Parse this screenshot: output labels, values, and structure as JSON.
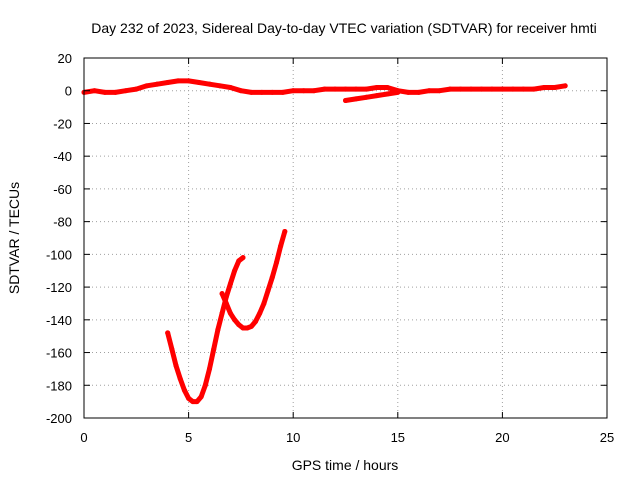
{
  "chart_data": {
    "type": "line",
    "title": "Day 232 of 2023, Sidereal Day-to-day VTEC variation (SDTVAR) for receiver hmti",
    "xlabel": "GPS time / hours",
    "ylabel": "SDTVAR / TECUs",
    "xlim": [
      0,
      25
    ],
    "ylim": [
      -200,
      20
    ],
    "xticks": [
      0,
      5,
      10,
      15,
      20,
      25
    ],
    "yticks": [
      20,
      0,
      -20,
      -40,
      -60,
      -80,
      -100,
      -120,
      -140,
      -160,
      -180,
      -200
    ],
    "grid": true,
    "legend": "none",
    "series_color": "#ff0000",
    "series": [
      {
        "x": [
          0.0,
          0.5,
          1.0,
          1.5,
          2.0,
          2.5,
          3.0,
          3.5,
          4.0,
          4.5,
          5.0,
          5.5,
          6.0,
          6.5,
          7.0,
          7.5,
          8.0,
          8.5,
          9.0,
          9.5,
          10.0,
          10.5,
          11.0,
          11.5,
          12.0,
          12.5,
          13.0,
          13.5,
          14.0,
          14.5,
          15.0,
          15.5,
          16.0,
          16.5,
          17.0,
          17.5,
          18.0,
          18.5,
          19.0,
          19.5,
          20.0,
          20.5,
          21.0,
          21.5,
          22.0,
          22.5,
          23.0
        ],
        "y": [
          -1,
          0,
          -1,
          -1,
          0,
          1,
          3,
          4,
          5,
          6,
          6,
          5,
          4,
          3,
          2,
          0,
          -1,
          -1,
          -1,
          -1,
          0,
          0,
          0,
          1,
          1,
          1,
          1,
          1,
          2,
          2,
          0,
          -1,
          -1,
          0,
          0,
          1,
          1,
          1,
          1,
          1,
          1,
          1,
          1,
          1,
          2,
          2,
          3
        ]
      },
      {
        "x": [
          12.5,
          13.0,
          13.5,
          14.0,
          14.5,
          15.0
        ],
        "y": [
          -6,
          -5,
          -4,
          -3,
          -2,
          -1
        ]
      },
      {
        "x": [
          4.0,
          4.2,
          4.4,
          4.6,
          4.8,
          5.0,
          5.2,
          5.4,
          5.6,
          5.8,
          6.0,
          6.2,
          6.4,
          6.6,
          6.8,
          7.0,
          7.2,
          7.4,
          7.6
        ],
        "y": [
          -148,
          -158,
          -168,
          -176,
          -183,
          -188,
          -190,
          -190,
          -187,
          -180,
          -170,
          -158,
          -146,
          -136,
          -126,
          -118,
          -110,
          -104,
          -102
        ]
      },
      {
        "x": [
          6.6,
          6.8,
          7.0,
          7.2,
          7.4,
          7.6,
          7.8,
          8.0,
          8.2,
          8.4,
          8.6,
          8.8,
          9.0,
          9.2,
          9.4,
          9.6
        ],
        "y": [
          -124,
          -130,
          -136,
          -140,
          -143,
          -145,
          -145,
          -144,
          -141,
          -136,
          -130,
          -122,
          -114,
          -105,
          -95,
          -86
        ]
      }
    ]
  }
}
